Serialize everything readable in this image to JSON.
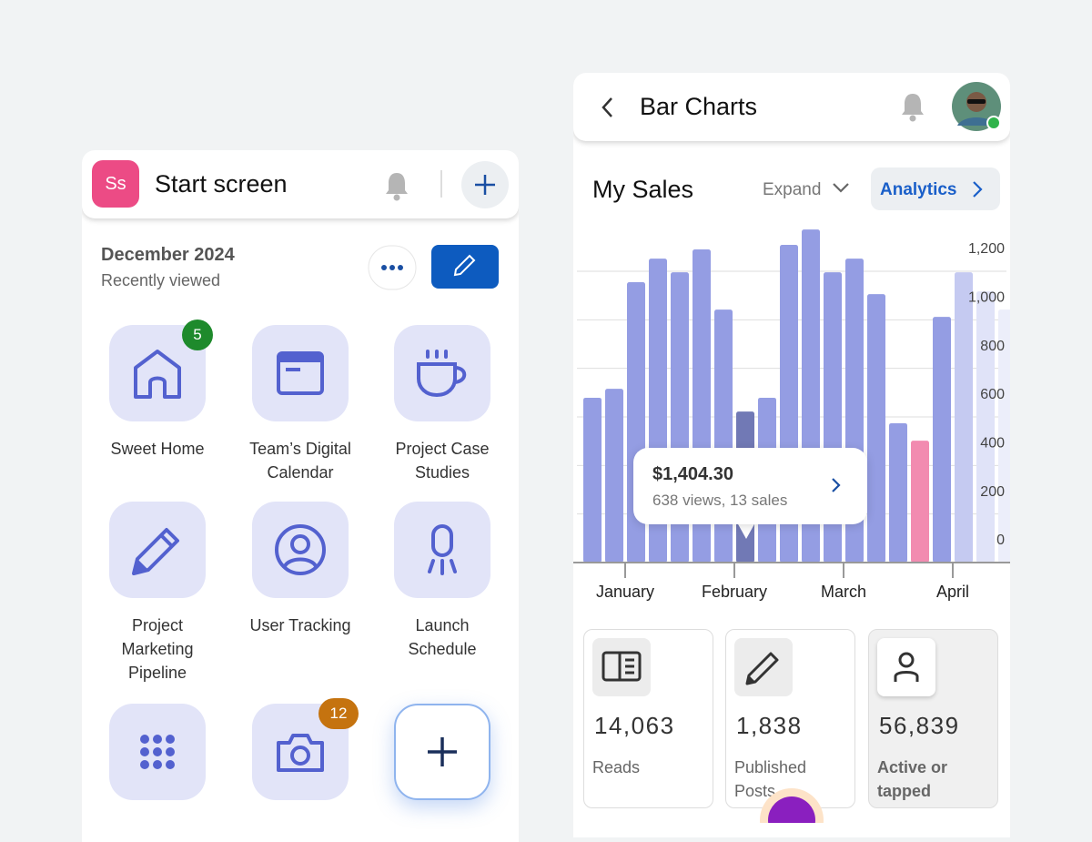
{
  "left_screen": {
    "avatar": "Ss",
    "title": "Start screen",
    "date": "December 2024",
    "subtitle": "Recently viewed",
    "tiles": [
      {
        "label": "Sweet Home",
        "badge": "5"
      },
      {
        "label": "Team’s Digital Calendar"
      },
      {
        "label": "Project Case Studies"
      },
      {
        "label": "Project Marketing Pipeline"
      },
      {
        "label": "User Tracking"
      },
      {
        "label": "Launch Schedule"
      },
      {
        "label": null
      },
      {
        "label": null,
        "badge": "12"
      }
    ]
  },
  "right_screen": {
    "title": "Bar Charts",
    "expand": "Expand",
    "analytics": "Analytics",
    "tooltip": {
      "amount": "$1,404.30",
      "detail": "638 views, 13 sales"
    },
    "stats": [
      {
        "value": "14,063",
        "label": "Reads"
      },
      {
        "value": "1,838",
        "label": "Published Posts"
      },
      {
        "value": "56,839",
        "label": "Active or tapped"
      }
    ]
  },
  "chart_data": {
    "type": "bar",
    "title": "My Sales",
    "categories": [
      null,
      null,
      "January",
      null,
      null,
      null,
      null,
      "February",
      null,
      null,
      null,
      null,
      "March",
      null,
      null,
      null,
      null,
      "April",
      null,
      null
    ],
    "values": [
      679,
      716,
      1155,
      1252,
      1196,
      1290,
      1042,
      622,
      679,
      1309,
      1372,
      1196,
      1252,
      1106,
      574,
      502,
      1012,
      1196,
      1117,
      1042
    ],
    "colors": [
      "#949de3",
      "#949de3",
      "#949de3",
      "#949de3",
      "#949de3",
      "#949de3",
      "#949de3",
      "#7179b5",
      "#949de3",
      "#949de3",
      "#949de3",
      "#949de3",
      "#949de3",
      "#949de3",
      "#949de3",
      "#f28bb0",
      "#949de3",
      "#c5caf1",
      "#e0e3f8",
      "#eceefa"
    ],
    "ylim": [
      0,
      1400
    ],
    "yticks": [
      0,
      200,
      400,
      600,
      800,
      {
        "value": 1000,
        "label": "1,000"
      },
      {
        "value": 1200,
        "label": "1,200"
      }
    ],
    "grid": true
  }
}
